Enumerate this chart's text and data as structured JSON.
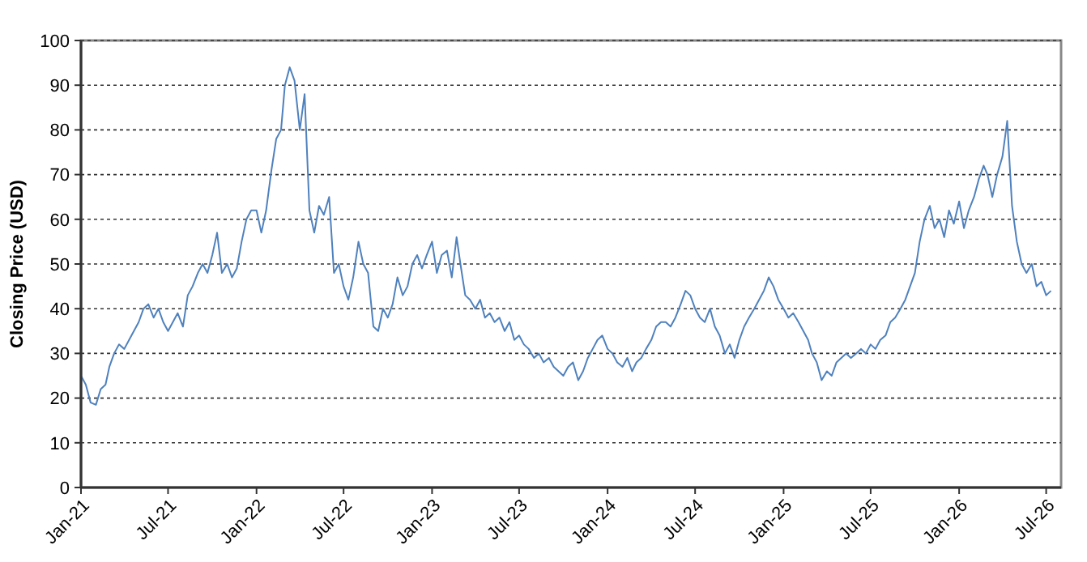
{
  "chart_data": {
    "type": "line",
    "ylabel": "Closing Price (USD)",
    "x": [
      "2021-01-01",
      "2021-01-11",
      "2021-01-21",
      "2021-02-01",
      "2021-02-11",
      "2021-02-21",
      "2021-03-01",
      "2021-03-11",
      "2021-03-21",
      "2021-04-01",
      "2021-04-11",
      "2021-04-21",
      "2021-05-01",
      "2021-05-11",
      "2021-05-21",
      "2021-06-01",
      "2021-06-11",
      "2021-06-21",
      "2021-07-01",
      "2021-07-11",
      "2021-07-21",
      "2021-08-01",
      "2021-08-11",
      "2021-08-21",
      "2021-09-01",
      "2021-09-11",
      "2021-09-21",
      "2021-10-01",
      "2021-10-11",
      "2021-10-21",
      "2021-11-01",
      "2021-11-11",
      "2021-11-21",
      "2021-12-01",
      "2021-12-11",
      "2021-12-21",
      "2022-01-01",
      "2022-01-11",
      "2022-01-21",
      "2022-02-01",
      "2022-02-11",
      "2022-02-21",
      "2022-03-01",
      "2022-03-11",
      "2022-03-21",
      "2022-04-01",
      "2022-04-11",
      "2022-04-21",
      "2022-05-01",
      "2022-05-11",
      "2022-05-21",
      "2022-06-01",
      "2022-06-11",
      "2022-06-21",
      "2022-07-01",
      "2022-07-11",
      "2022-07-21",
      "2022-08-01",
      "2022-08-11",
      "2022-08-21",
      "2022-09-01",
      "2022-09-11",
      "2022-09-21",
      "2022-10-01",
      "2022-10-11",
      "2022-10-21",
      "2022-11-01",
      "2022-11-11",
      "2022-11-21",
      "2022-12-01",
      "2022-12-11",
      "2022-12-21",
      "2023-01-01",
      "2023-01-11",
      "2023-01-21",
      "2023-02-01",
      "2023-02-11",
      "2023-02-21",
      "2023-03-01",
      "2023-03-11",
      "2023-03-21",
      "2023-04-01",
      "2023-04-11",
      "2023-04-21",
      "2023-05-01",
      "2023-05-11",
      "2023-05-21",
      "2023-06-01",
      "2023-06-11",
      "2023-06-21",
      "2023-07-01",
      "2023-07-11",
      "2023-07-21",
      "2023-08-01",
      "2023-08-11",
      "2023-08-21",
      "2023-09-01",
      "2023-09-11",
      "2023-09-21",
      "2023-10-01",
      "2023-10-11",
      "2023-10-21",
      "2023-11-01",
      "2023-11-11",
      "2023-11-21",
      "2023-12-01",
      "2023-12-11",
      "2023-12-21",
      "2024-01-01",
      "2024-01-11",
      "2024-01-21",
      "2024-02-01",
      "2024-02-11",
      "2024-02-21",
      "2024-03-01",
      "2024-03-11",
      "2024-03-21",
      "2024-04-01",
      "2024-04-11",
      "2024-04-21",
      "2024-05-01",
      "2024-05-11",
      "2024-05-21",
      "2024-06-01",
      "2024-06-11",
      "2024-06-21",
      "2024-07-01",
      "2024-07-11",
      "2024-07-21",
      "2024-08-01",
      "2024-08-11",
      "2024-08-21",
      "2024-09-01",
      "2024-09-11",
      "2024-09-21",
      "2024-10-01",
      "2024-10-11",
      "2024-10-21",
      "2024-11-01",
      "2024-11-11",
      "2024-11-21",
      "2024-12-01",
      "2024-12-11",
      "2024-12-21",
      "2025-01-01",
      "2025-01-11",
      "2025-01-21",
      "2025-02-01",
      "2025-02-11",
      "2025-02-21",
      "2025-03-01",
      "2025-03-11",
      "2025-03-21",
      "2025-04-01",
      "2025-04-11",
      "2025-04-21",
      "2025-05-01",
      "2025-05-11",
      "2025-05-21",
      "2025-06-01",
      "2025-06-11",
      "2025-06-21",
      "2025-07-01",
      "2025-07-11",
      "2025-07-21",
      "2025-08-01",
      "2025-08-11",
      "2025-08-21",
      "2025-09-01",
      "2025-09-11",
      "2025-09-21",
      "2025-10-01",
      "2025-10-11",
      "2025-10-21",
      "2025-11-01",
      "2025-11-11",
      "2025-11-21",
      "2025-12-01",
      "2025-12-11",
      "2025-12-21",
      "2026-01-01",
      "2026-01-11",
      "2026-01-21",
      "2026-02-01",
      "2026-02-11",
      "2026-02-21",
      "2026-03-01",
      "2026-03-11",
      "2026-03-21",
      "2026-04-01",
      "2026-04-11",
      "2026-04-21",
      "2026-05-01",
      "2026-05-11",
      "2026-05-21",
      "2026-06-01",
      "2026-06-11",
      "2026-06-21",
      "2026-07-01",
      "2026-07-11"
    ],
    "series": [
      {
        "color": "#4f81bd",
        "values": [
          25,
          23,
          19,
          18.5,
          22,
          23,
          27,
          30,
          32,
          31,
          33,
          35,
          37,
          40,
          41,
          38,
          40,
          37,
          35,
          37,
          39,
          36,
          43,
          45,
          48,
          50,
          48,
          52,
          57,
          48,
          50,
          47,
          49,
          55,
          60,
          62,
          62,
          57,
          62,
          71,
          78,
          80,
          90,
          94,
          91,
          80,
          88,
          62,
          57,
          63,
          61,
          65,
          48,
          50,
          45,
          42,
          47,
          55,
          50,
          48,
          36,
          35,
          40,
          38,
          41,
          47,
          43,
          45,
          50,
          52,
          49,
          52,
          55,
          48,
          52,
          53,
          47,
          56,
          50,
          43,
          42,
          40,
          42,
          38,
          39,
          37,
          38,
          35,
          37,
          33,
          34,
          32,
          31,
          29,
          30,
          28,
          29,
          27,
          26,
          25,
          27,
          28,
          24,
          26,
          29,
          31,
          33,
          34,
          31,
          30,
          28,
          27,
          29,
          26,
          28,
          29,
          31,
          33,
          36,
          37,
          37,
          36,
          38,
          41,
          44,
          43,
          40,
          38,
          37,
          40,
          36,
          34,
          30,
          32,
          29,
          33,
          36,
          38,
          40,
          42,
          44,
          47,
          45,
          42,
          40,
          38,
          39,
          37,
          35,
          33,
          30,
          28,
          24,
          26,
          25,
          28,
          29,
          30,
          29,
          30,
          31,
          30,
          32,
          31,
          33,
          34,
          37,
          38,
          40,
          42,
          45,
          48,
          55,
          60,
          63,
          58,
          60,
          56,
          62,
          59,
          64,
          58,
          62,
          65,
          69,
          72,
          70,
          65,
          70,
          74,
          82,
          63,
          55,
          50,
          48,
          50,
          45,
          46,
          43,
          44
        ]
      }
    ],
    "xlim": [
      "2021-01-01",
      "2026-08-01"
    ],
    "xticks": [
      {
        "value": "2021-01-01",
        "label": "Jan-21"
      },
      {
        "value": "2021-07-01",
        "label": "Jul-21"
      },
      {
        "value": "2022-01-01",
        "label": "Jan-22"
      },
      {
        "value": "2022-07-01",
        "label": "Jul-22"
      },
      {
        "value": "2023-01-01",
        "label": "Jan-23"
      },
      {
        "value": "2023-07-01",
        "label": "Jul-23"
      },
      {
        "value": "2024-01-01",
        "label": "Jan-24"
      },
      {
        "value": "2024-07-01",
        "label": "Jul-24"
      },
      {
        "value": "2025-01-01",
        "label": "Jan-25"
      },
      {
        "value": "2025-07-01",
        "label": "Jul-25"
      },
      {
        "value": "2026-01-01",
        "label": "Jan-26"
      },
      {
        "value": "2026-07-01",
        "label": "Jul-26"
      }
    ],
    "ylim": [
      0,
      100
    ],
    "yticks": [
      0,
      10,
      20,
      30,
      40,
      50,
      60,
      70,
      80,
      90,
      100
    ],
    "grid": "y",
    "line_style": "solid",
    "marker": "none"
  }
}
